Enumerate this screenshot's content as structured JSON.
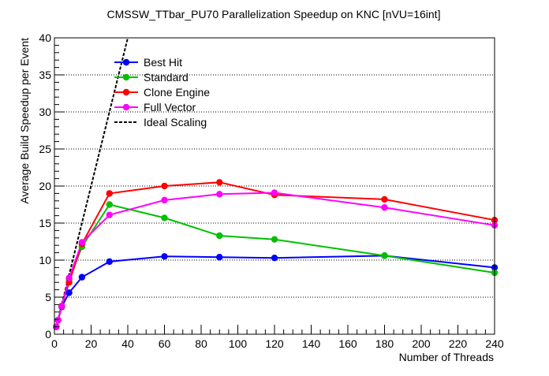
{
  "chart_data": {
    "type": "line",
    "title": "CMSSW_TTbar_PU70 Parallelization Speedup on KNC [nVU=16int]",
    "xlabel": "Number of Threads",
    "ylabel": "Average Build Speedup per Event",
    "xlim": [
      0,
      240
    ],
    "ylim": [
      0,
      40
    ],
    "xticks": [
      0,
      20,
      40,
      60,
      80,
      100,
      120,
      140,
      160,
      180,
      200,
      220,
      240
    ],
    "yticks": [
      0,
      5,
      10,
      15,
      20,
      25,
      30,
      35,
      40
    ],
    "grid_y": true,
    "grid_x": false,
    "legend_position": "top-left",
    "series": [
      {
        "name": "Best Hit",
        "color": "#0000ff",
        "x": [
          1,
          2,
          4,
          8,
          15,
          30,
          60,
          90,
          120,
          180,
          240
        ],
        "y": [
          1.0,
          1.9,
          3.7,
          5.6,
          7.7,
          9.8,
          10.5,
          10.4,
          10.3,
          10.6,
          9.0
        ]
      },
      {
        "name": "Standard",
        "color": "#00c000",
        "x": [
          1,
          2,
          4,
          8,
          15,
          30,
          60,
          90,
          120,
          180,
          240
        ],
        "y": [
          1.0,
          1.9,
          3.8,
          7.4,
          11.8,
          17.5,
          15.7,
          13.3,
          12.8,
          10.6,
          8.3
        ]
      },
      {
        "name": "Clone Engine",
        "color": "#ff0000",
        "x": [
          1,
          2,
          4,
          8,
          15,
          30,
          60,
          90,
          120,
          180,
          240
        ],
        "y": [
          1.0,
          1.9,
          3.8,
          7.0,
          12.2,
          19.0,
          20.0,
          20.5,
          18.8,
          18.2,
          15.4
        ]
      },
      {
        "name": "Full Vector",
        "color": "#ff00ff",
        "x": [
          1,
          2,
          4,
          8,
          15,
          30,
          60,
          90,
          120,
          180,
          240
        ],
        "y": [
          1.0,
          1.9,
          3.8,
          7.6,
          12.4,
          16.1,
          18.1,
          18.9,
          19.1,
          17.1,
          14.7
        ]
      },
      {
        "name": "Ideal Scaling",
        "color": "#000000",
        "dashed": true,
        "markers": false,
        "x": [
          1,
          40
        ],
        "y": [
          1,
          40
        ]
      }
    ]
  }
}
